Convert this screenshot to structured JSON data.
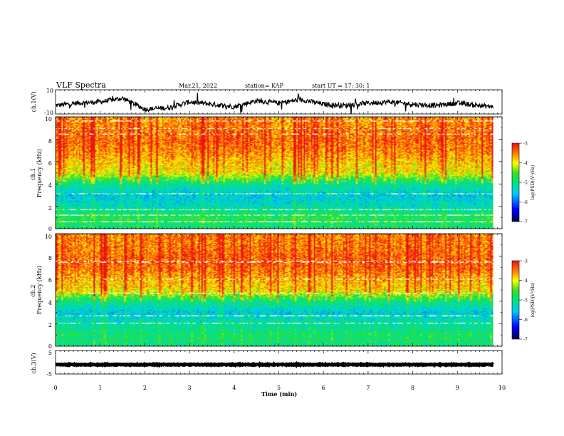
{
  "header": {
    "title": "VLF Spectra",
    "date": "Mar.21, 2022",
    "station": "station= KAP",
    "start": "start  UT =   17: 30: 1"
  },
  "chart_data": [
    {
      "type": "line",
      "panel": "ch1-waveform",
      "ylabel": "ch.1(V)",
      "ylim": [
        -10,
        10
      ],
      "yticklabels": [
        "10",
        "-10"
      ],
      "xlim": [
        0,
        10
      ],
      "line_color": "#000000",
      "x": [
        0.0,
        0.5,
        1.0,
        1.5,
        2.0,
        2.5,
        3.0,
        3.5,
        4.0,
        4.5,
        5.0,
        5.5,
        6.0,
        6.5,
        7.0,
        7.5,
        8.0,
        8.5,
        9.0,
        9.5,
        9.8
      ],
      "y": [
        -3,
        -1,
        0,
        3,
        -6,
        -5,
        0,
        -2,
        -4,
        1,
        -1,
        2,
        -2,
        -3,
        -1,
        0,
        -2,
        -3,
        -1,
        -3,
        -4
      ]
    },
    {
      "type": "heatmap",
      "panel": "ch1-spectrogram",
      "ylabel": "ch.1\nFrequency (kHz)",
      "ylim": [
        0,
        10
      ],
      "yticklabels": [
        "0",
        "2",
        "4",
        "6",
        "8",
        "10"
      ],
      "xlim": [
        0,
        10.0
      ],
      "data_xlim": [
        0,
        9.8
      ],
      "colorbar": {
        "label": "log(PSD)(V²/Hz)",
        "range": [
          -7,
          -3
        ],
        "ticklabels": [
          "-3",
          "-4",
          "-5",
          "-6",
          "-7"
        ]
      },
      "freq_profile_khz": [
        0,
        1,
        2,
        3,
        4,
        5,
        6,
        7,
        8,
        9,
        10
      ],
      "log_psd_profile": [
        -5.0,
        -4.8,
        -5.3,
        -5.5,
        -5.1,
        -4.0,
        -3.8,
        -3.5,
        -3.4,
        -3.5,
        -3.6
      ]
    },
    {
      "type": "heatmap",
      "panel": "ch2-spectrogram",
      "ylabel": "ch.2\nFrequency (kHz)",
      "ylim": [
        0,
        10
      ],
      "yticklabels": [
        "0",
        "2",
        "4",
        "6",
        "8",
        "10"
      ],
      "xlim": [
        0,
        10.0
      ],
      "data_xlim": [
        0,
        9.8
      ],
      "colorbar": {
        "label": "log(PSD)(V²/Hz)",
        "range": [
          -7,
          -3
        ],
        "ticklabels": [
          "-3",
          "-4",
          "-5",
          "-6",
          "-7"
        ]
      },
      "freq_profile_khz": [
        0,
        1,
        2,
        3,
        4,
        5,
        6,
        7,
        8,
        9,
        10
      ],
      "log_psd_profile": [
        -5.0,
        -4.9,
        -5.2,
        -5.5,
        -5.0,
        -3.9,
        -3.7,
        -3.4,
        -3.4,
        -3.5,
        -3.5
      ]
    },
    {
      "type": "line",
      "panel": "ch3-waveform",
      "ylabel": "ch.3(V)",
      "ylim": [
        -5,
        5
      ],
      "yticklabels": [
        "5",
        "-5"
      ],
      "xlim": [
        0,
        10
      ],
      "xlabel": "Time (min)",
      "xticklabels": [
        "0",
        "1",
        "2",
        "3",
        "4",
        "5",
        "6",
        "7",
        "8",
        "9",
        "10"
      ],
      "line_color": "#000000",
      "x": [
        0.0,
        9.8
      ],
      "y": [
        -1,
        -1
      ]
    }
  ]
}
